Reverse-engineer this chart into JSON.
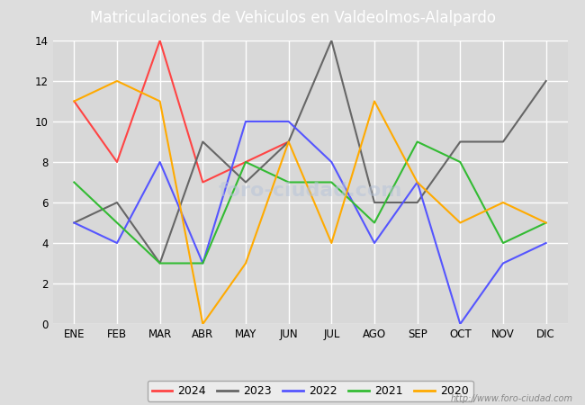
{
  "title": "Matriculaciones de Vehiculos en Valdeolmos-Alalpardo",
  "title_bg_color": "#4472c4",
  "title_text_color": "#ffffff",
  "x_labels": [
    "ENE",
    "FEB",
    "MAR",
    "ABR",
    "MAY",
    "JUN",
    "JUL",
    "AGO",
    "SEP",
    "OCT",
    "NOV",
    "DIC"
  ],
  "ylim": [
    0,
    14
  ],
  "yticks": [
    0,
    2,
    4,
    6,
    8,
    10,
    12,
    14
  ],
  "series": {
    "2024": {
      "color": "#ff4444",
      "values": [
        11,
        8,
        14,
        7,
        8,
        9,
        null,
        null,
        null,
        null,
        null,
        null
      ]
    },
    "2023": {
      "color": "#666666",
      "values": [
        5,
        6,
        3,
        9,
        7,
        9,
        14,
        6,
        6,
        9,
        9,
        12
      ]
    },
    "2022": {
      "color": "#5555ff",
      "values": [
        5,
        4,
        8,
        3,
        10,
        10,
        8,
        4,
        7,
        0,
        3,
        4
      ]
    },
    "2021": {
      "color": "#33bb33",
      "values": [
        7,
        5,
        3,
        3,
        8,
        7,
        7,
        5,
        9,
        8,
        4,
        5
      ]
    },
    "2020": {
      "color": "#ffaa00",
      "values": [
        11,
        12,
        11,
        0,
        3,
        9,
        4,
        11,
        7,
        5,
        6,
        5
      ]
    }
  },
  "legend_order": [
    "2024",
    "2023",
    "2022",
    "2021",
    "2020"
  ],
  "watermark": "http://www.foro-ciudad.com",
  "fig_bg_color": "#dddddd",
  "plot_bg_color": "#d8d8d8",
  "grid_color": "#ffffff"
}
